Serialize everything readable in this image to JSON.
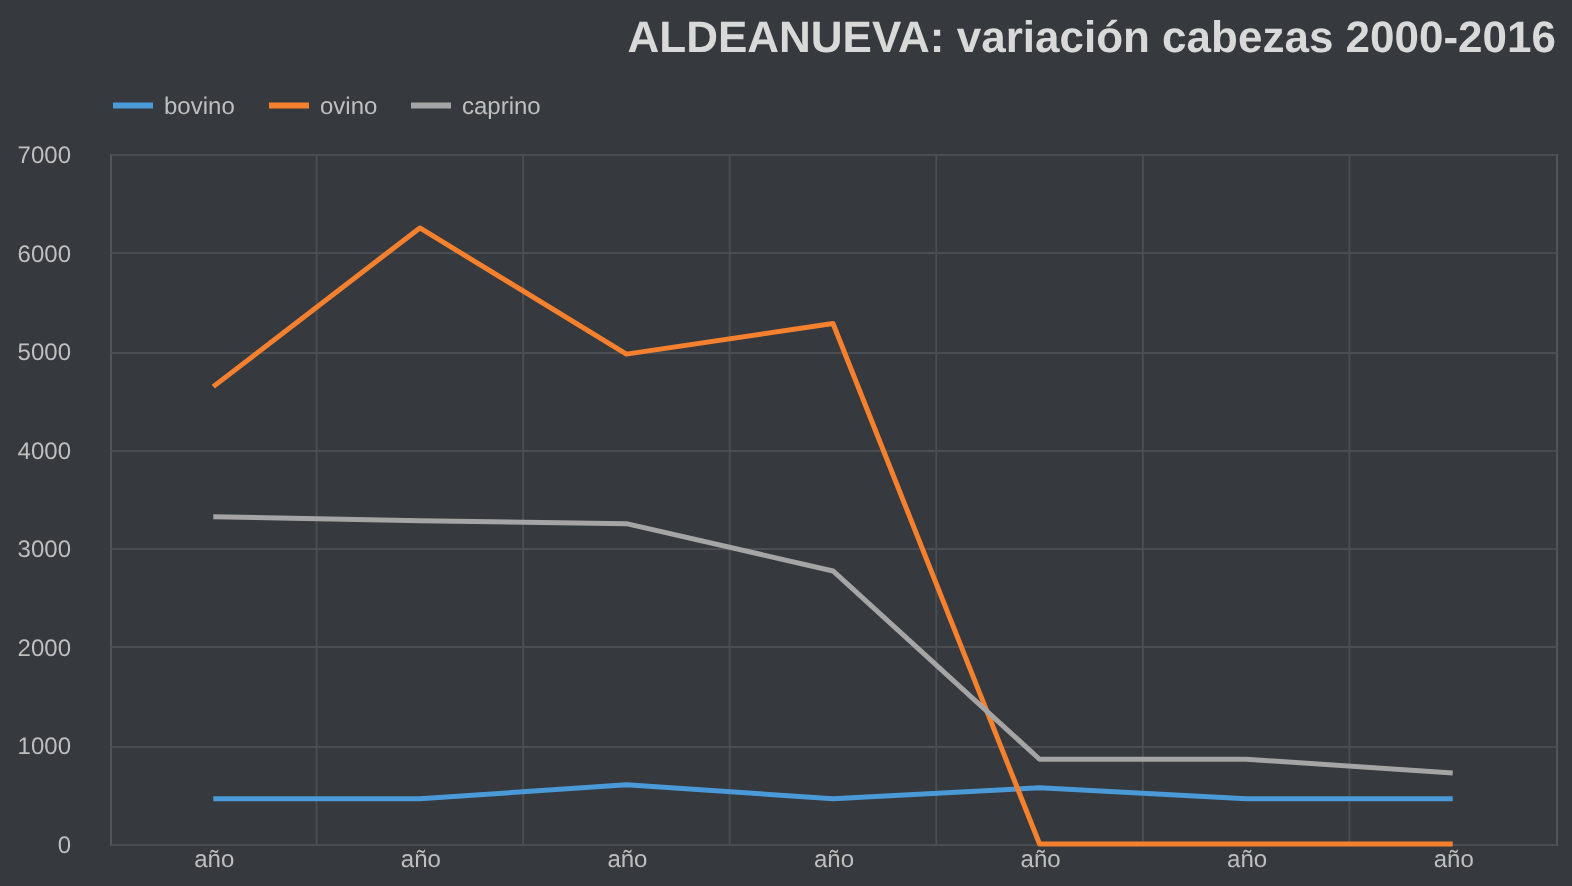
{
  "chart_data": {
    "type": "line",
    "title": "ALDEANUEVA: variación cabezas 2000-2016",
    "categories": [
      "año",
      "año",
      "año",
      "año",
      "año",
      "año",
      "año"
    ],
    "series": [
      {
        "name": "bovino",
        "color": "#4a9ad9",
        "values": [
          460,
          460,
          600,
          460,
          570,
          460,
          460
        ]
      },
      {
        "name": "ovino",
        "color": "#f5812f",
        "values": [
          4640,
          6250,
          4970,
          5280,
          0,
          0,
          0
        ]
      },
      {
        "name": "caprino",
        "color": "#a5a5a5",
        "values": [
          3320,
          3280,
          3250,
          2770,
          860,
          860,
          720
        ]
      }
    ],
    "ylim": [
      0,
      7000
    ],
    "yticks": [
      0,
      1000,
      2000,
      3000,
      4000,
      5000,
      6000,
      7000
    ],
    "grid": true,
    "legend": "top",
    "marker": "none",
    "line_style": "solid"
  }
}
